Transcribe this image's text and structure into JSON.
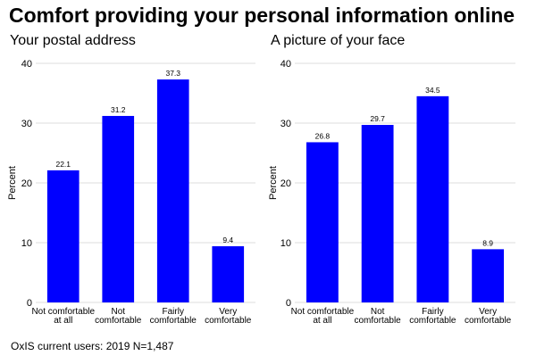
{
  "title": "Comfort providing your personal information online",
  "footer": "OxIS current users: 2019 N=1,487",
  "colors": {
    "bar": "#0000ff",
    "grid": "#dddddd",
    "axis": "#333333"
  },
  "chart_data": [
    {
      "type": "bar",
      "title": "Your postal address",
      "ylabel": "Percent",
      "xlabel": "",
      "ylim": [
        0,
        40
      ],
      "yticks": [
        0,
        10,
        20,
        30,
        40
      ],
      "grid": true,
      "categories": [
        [
          "Not comfortable",
          "at all"
        ],
        [
          "Not",
          "comfortable"
        ],
        [
          "Fairly",
          "comfortable"
        ],
        [
          "Very",
          "comfortable"
        ]
      ],
      "values": [
        22.1,
        31.2,
        37.3,
        9.4
      ],
      "value_labels": [
        "22.1",
        "31.2",
        "37.3",
        "9.4"
      ]
    },
    {
      "type": "bar",
      "title": "A picture of your face",
      "ylabel": "Percent",
      "xlabel": "",
      "ylim": [
        0,
        40
      ],
      "yticks": [
        0,
        10,
        20,
        30,
        40
      ],
      "grid": true,
      "categories": [
        [
          "Not comfortable",
          "at all"
        ],
        [
          "Not",
          "comfortable"
        ],
        [
          "Fairly",
          "comfortable"
        ],
        [
          "Very",
          "comfortable"
        ]
      ],
      "values": [
        26.8,
        29.7,
        34.5,
        8.9
      ],
      "value_labels": [
        "26.8",
        "29.7",
        "34.5",
        "8.9"
      ]
    }
  ]
}
